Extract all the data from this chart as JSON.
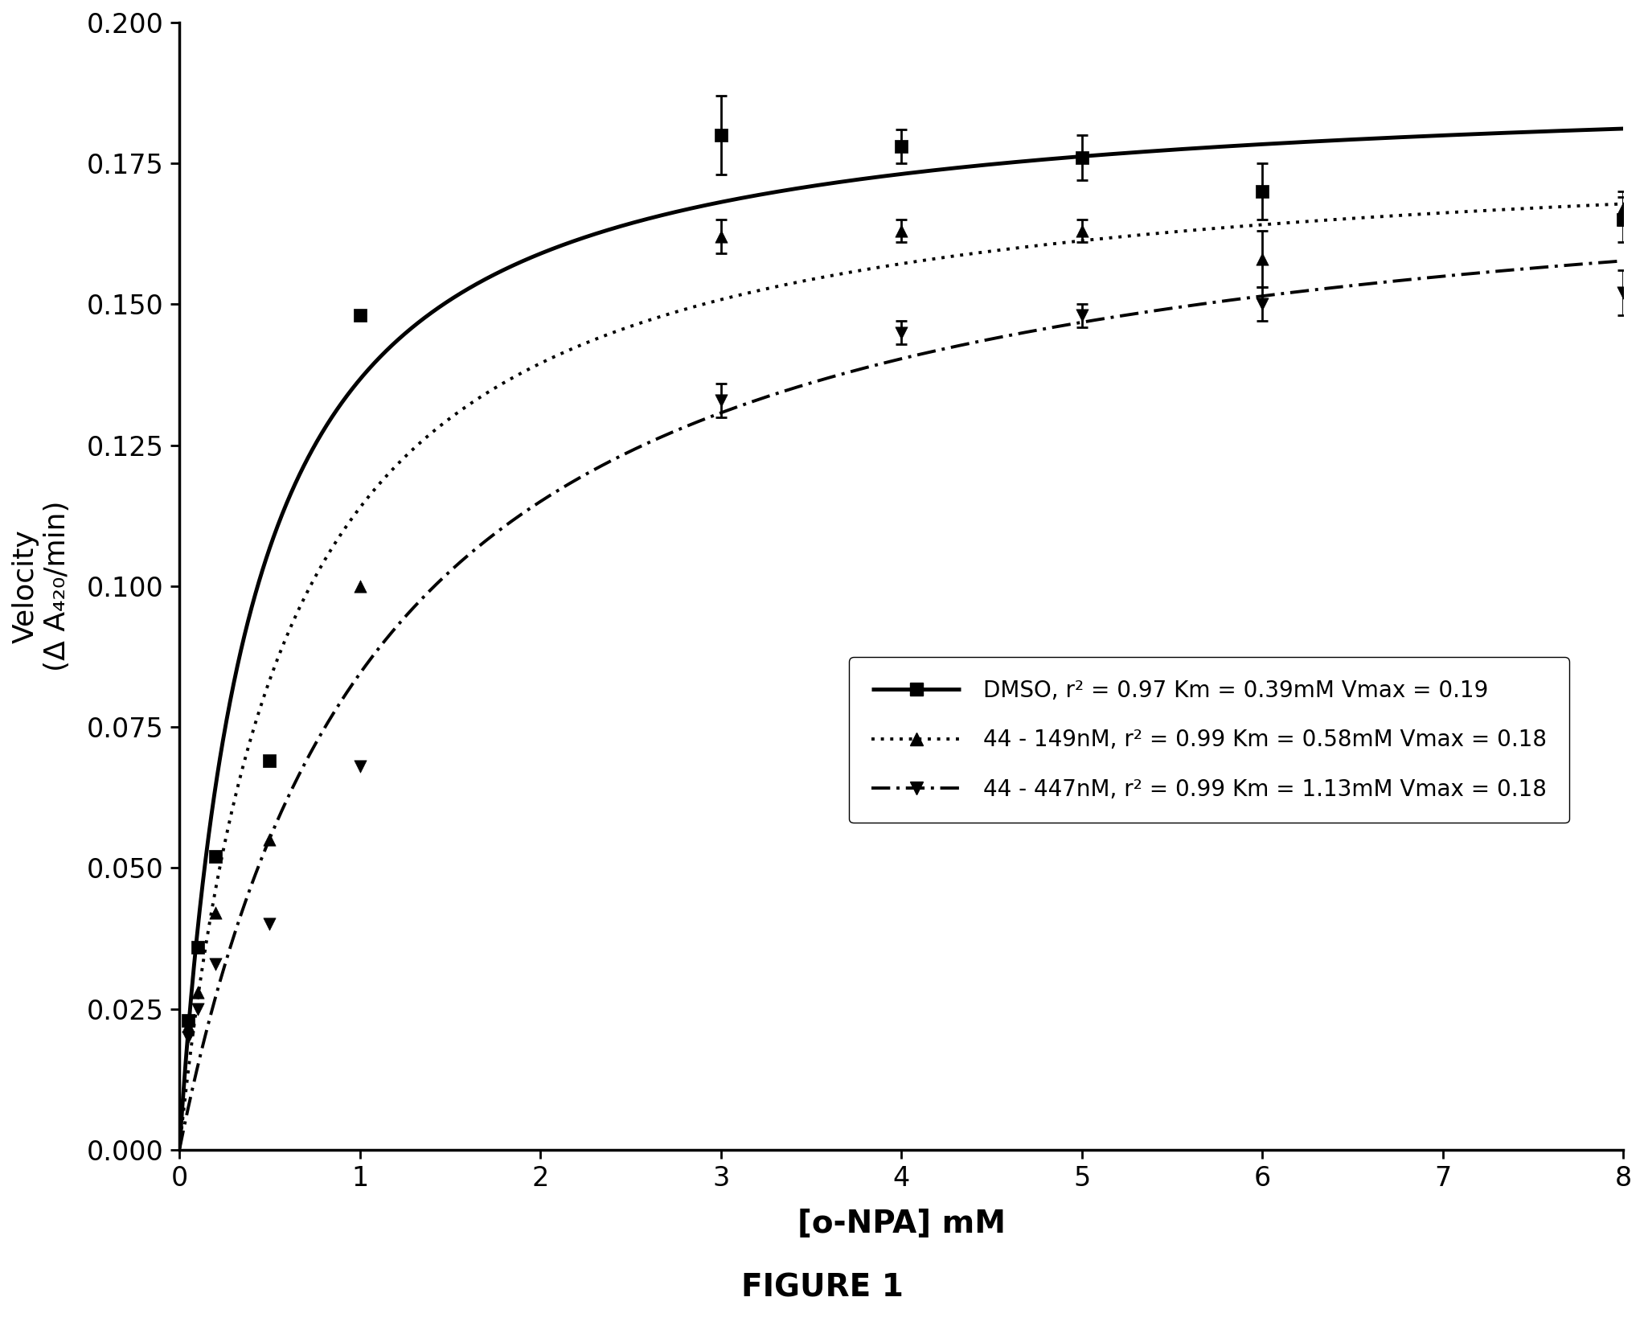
{
  "title": "FIGURE 1",
  "xlabel": "[o-NPA] mM",
  "ylabel_line1": "Velocity",
  "ylabel_line2": "(Δ A₄₂₀/min)",
  "xlim": [
    0,
    8
  ],
  "ylim": [
    0.0,
    0.2
  ],
  "xticks": [
    0,
    1,
    2,
    3,
    4,
    5,
    6,
    7,
    8
  ],
  "yticks": [
    0.0,
    0.025,
    0.05,
    0.075,
    0.1,
    0.125,
    0.15,
    0.175,
    0.2
  ],
  "series": [
    {
      "label": "DMSO, r² = 0.97 Km = 0.39mM Vmax = 0.19",
      "Vmax": 0.19,
      "Km": 0.39,
      "linewidth": 3.5,
      "marker": "s",
      "markersize": 11,
      "data_x": [
        0.05,
        0.1,
        0.2,
        0.5,
        1.0,
        3.0,
        4.0,
        5.0,
        6.0,
        8.0
      ],
      "data_y": [
        0.023,
        0.036,
        0.052,
        0.069,
        0.148,
        0.18,
        0.178,
        0.176,
        0.17,
        0.165
      ],
      "error_y": [
        0.0,
        0.0,
        0.0,
        0.0,
        0.0,
        0.007,
        0.003,
        0.004,
        0.005,
        0.004
      ]
    },
    {
      "label": "44 - 149nM, r² = 0.99 Km = 0.58mM Vmax = 0.18",
      "Vmax": 0.18,
      "Km": 0.58,
      "linewidth": 2.8,
      "marker": "^",
      "markersize": 11,
      "data_x": [
        0.05,
        0.1,
        0.2,
        0.5,
        1.0,
        3.0,
        4.0,
        5.0,
        6.0,
        8.0
      ],
      "data_y": [
        0.022,
        0.028,
        0.042,
        0.055,
        0.1,
        0.162,
        0.163,
        0.163,
        0.158,
        0.167
      ],
      "error_y": [
        0.0,
        0.0,
        0.0,
        0.0,
        0.0,
        0.003,
        0.002,
        0.002,
        0.005,
        0.003
      ]
    },
    {
      "label": "44 - 447nM, r² = 0.99 Km = 1.13mM Vmax = 0.18",
      "Vmax": 0.18,
      "Km": 1.13,
      "linewidth": 2.8,
      "marker": "v",
      "markersize": 11,
      "data_x": [
        0.05,
        0.1,
        0.2,
        0.5,
        1.0,
        3.0,
        4.0,
        5.0,
        6.0,
        8.0
      ],
      "data_y": [
        0.02,
        0.025,
        0.033,
        0.04,
        0.068,
        0.133,
        0.145,
        0.148,
        0.15,
        0.152
      ],
      "error_y": [
        0.0,
        0.0,
        0.0,
        0.0,
        0.0,
        0.003,
        0.002,
        0.002,
        0.003,
        0.004
      ]
    }
  ],
  "background_color": "#ffffff",
  "figure_size": [
    20.45,
    16.54
  ],
  "dpi": 100
}
